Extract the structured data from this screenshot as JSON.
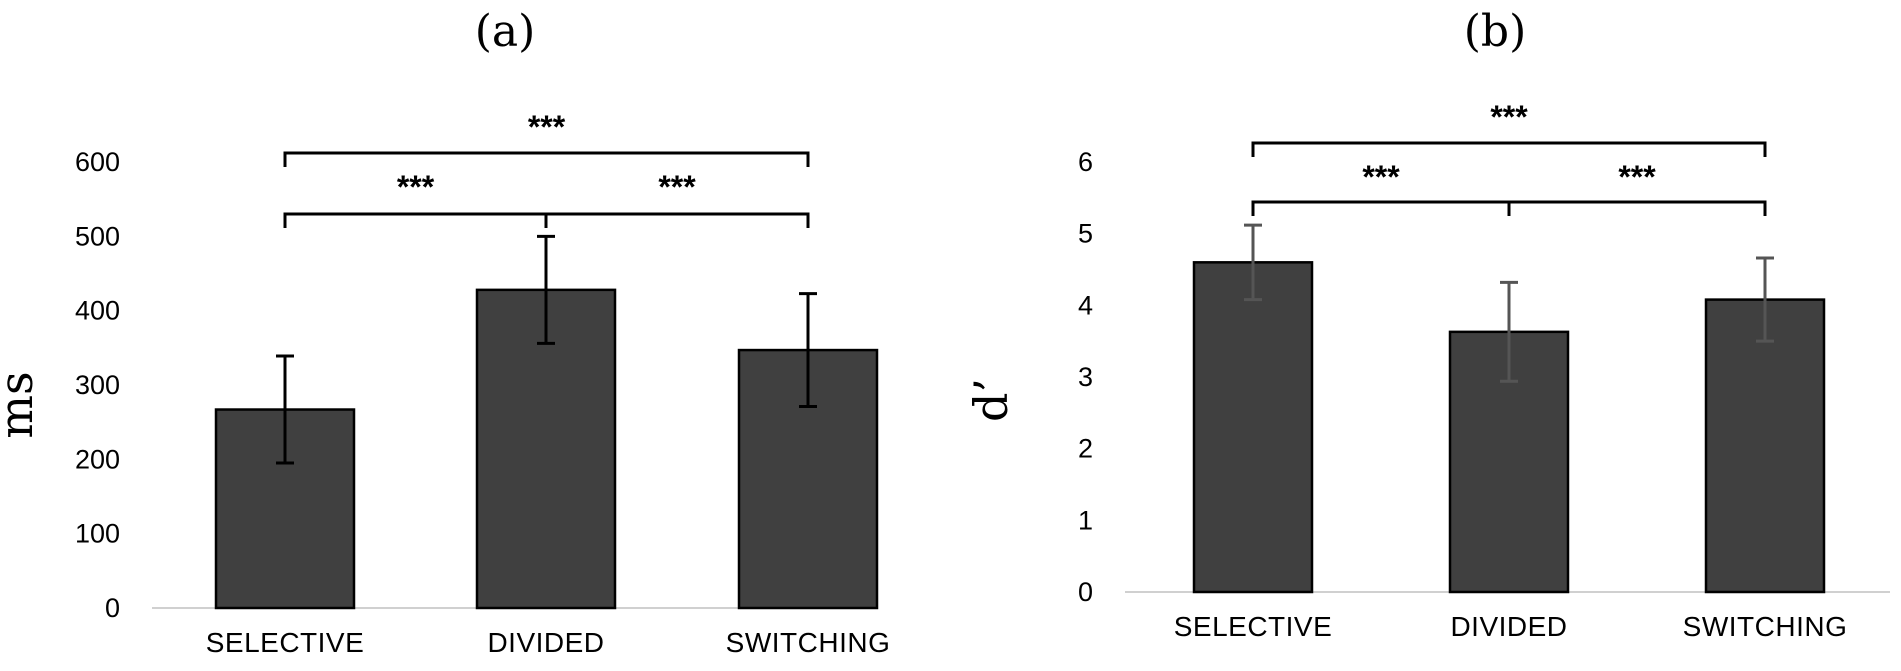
{
  "chart_data": [
    {
      "panel_label": "(a)",
      "type": "bar",
      "categories": [
        "SELECTIVE",
        "DIVIDED",
        "SWITCHING"
      ],
      "values": [
        267,
        428,
        347
      ],
      "errors": [
        72,
        72,
        76
      ],
      "ylabel": "ms",
      "xlabel": "",
      "ylim": [
        0,
        600
      ],
      "yticks": [
        0,
        100,
        200,
        300,
        400,
        500,
        600
      ],
      "ytick_labels": [
        "0",
        "100",
        "200",
        "300",
        "400",
        "500",
        "600"
      ],
      "bar_color": "#404040",
      "error_bar_color": "#000000",
      "grid": false,
      "annotations": [
        {
          "from": 0,
          "to": 1,
          "label": "***",
          "level": 0
        },
        {
          "from": 1,
          "to": 2,
          "label": "***",
          "level": 0
        },
        {
          "from": 0,
          "to": 2,
          "label": "***",
          "level": 1
        }
      ]
    },
    {
      "panel_label": "(b)",
      "type": "bar",
      "categories": [
        "SELECTIVE",
        "DIVIDED",
        "SWITCHING"
      ],
      "values": [
        4.6,
        3.63,
        4.08
      ],
      "errors": [
        0.52,
        0.69,
        0.58
      ],
      "ylabel": "d’",
      "xlabel": "",
      "ylim": [
        0,
        6
      ],
      "yticks": [
        0,
        1,
        2,
        3,
        4,
        5,
        6
      ],
      "ytick_labels": [
        "0",
        "1",
        "2",
        "3",
        "4",
        "5",
        "6"
      ],
      "bar_color": "#404040",
      "error_bar_color": "#555555",
      "grid": false,
      "annotations": [
        {
          "from": 0,
          "to": 1,
          "label": "***",
          "level": 0
        },
        {
          "from": 1,
          "to": 2,
          "label": "***",
          "level": 0
        },
        {
          "from": 0,
          "to": 2,
          "label": "***",
          "level": 1
        }
      ]
    }
  ]
}
